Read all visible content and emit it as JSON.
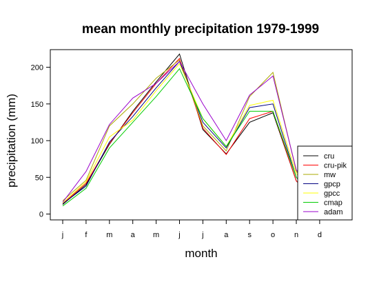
{
  "chart_data": {
    "type": "line",
    "title": "mean monthly precipitation 1979-1999",
    "xlabel": "month",
    "ylabel": "precipitation (mm)",
    "categories": [
      "j",
      "f",
      "m",
      "a",
      "m",
      "j",
      "j",
      "a",
      "s",
      "o",
      "n",
      "d"
    ],
    "ylim": [
      -8,
      224
    ],
    "yticks": [
      0,
      50,
      100,
      150,
      200
    ],
    "grid": false,
    "legend_position": "bottom-right",
    "series": [
      {
        "name": "cru",
        "color": "#000000",
        "values": [
          13,
          40,
          95,
          140,
          180,
          218,
          115,
          82,
          125,
          138,
          45,
          15
        ]
      },
      {
        "name": "cru-pik",
        "color": "#ff0000",
        "values": [
          14,
          42,
          96,
          138,
          178,
          212,
          117,
          81,
          130,
          140,
          45,
          15
        ]
      },
      {
        "name": "mw",
        "color": "#aaaa00",
        "values": [
          18,
          46,
          120,
          150,
          185,
          210,
          120,
          86,
          160,
          193,
          58,
          20
        ]
      },
      {
        "name": "gpcp",
        "color": "#000080",
        "values": [
          14,
          38,
          98,
          133,
          172,
          208,
          125,
          90,
          145,
          150,
          50,
          15
        ]
      },
      {
        "name": "gpcc",
        "color": "#ffff00",
        "values": [
          15,
          44,
          105,
          128,
          168,
          205,
          130,
          92,
          148,
          155,
          55,
          18
        ]
      },
      {
        "name": "cmap",
        "color": "#00cc00",
        "values": [
          11,
          35,
          90,
          125,
          160,
          198,
          130,
          92,
          140,
          140,
          50,
          15
        ]
      },
      {
        "name": "adam",
        "color": "#9900cc",
        "values": [
          16,
          58,
          122,
          158,
          178,
          208,
          150,
          100,
          162,
          188,
          60,
          20
        ]
      }
    ]
  }
}
